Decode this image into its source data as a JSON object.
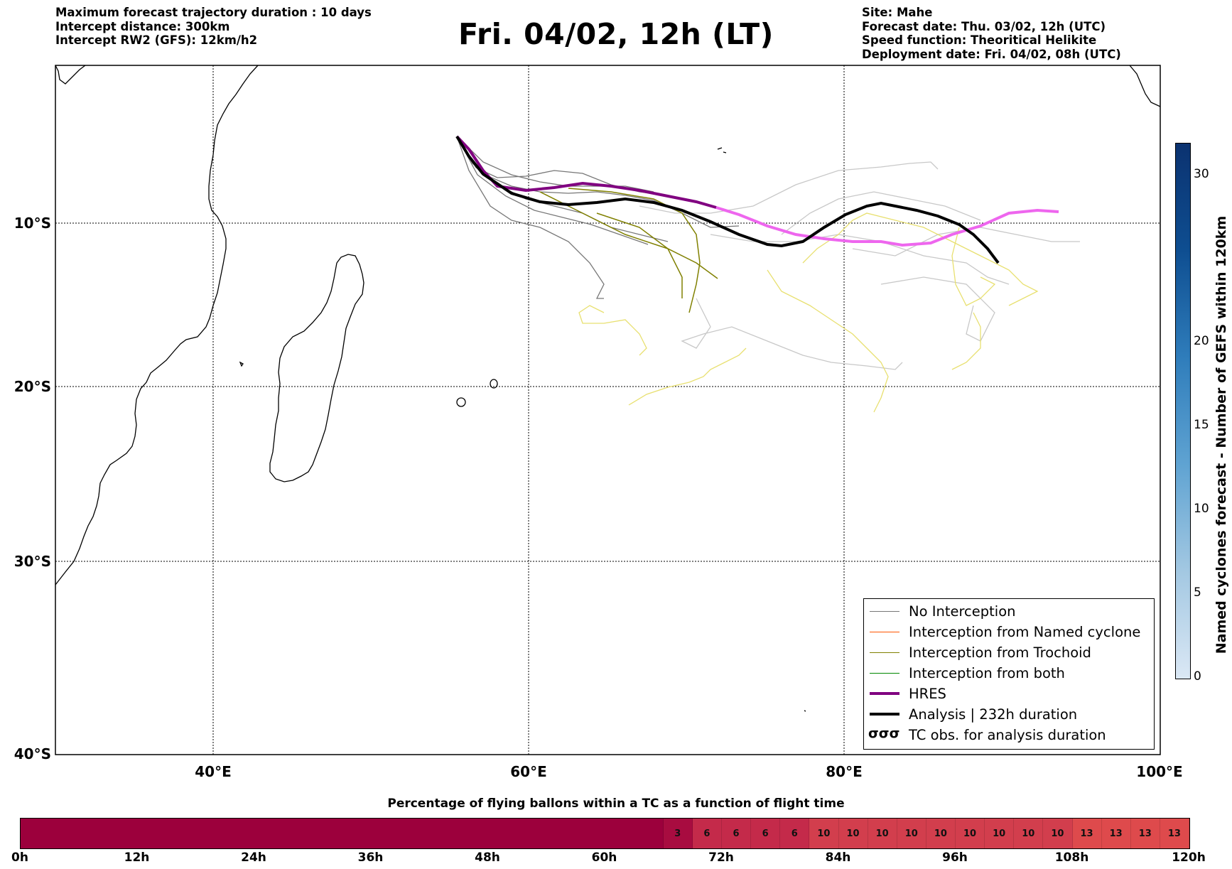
{
  "header_left": [
    "Maximum forecast trajectory duration : 10 days",
    "Intercept distance: 300km",
    "Intercept RW2 (GFS):  12km/h2"
  ],
  "title": "Fri. 04/02, 12h (LT)",
  "header_right": [
    "Site: Mahe",
    "Forecast date: Thu. 03/02, 12h (UTC)",
    "Speed function: Theoritical Helikite",
    "Deployment date: Fri. 04/02, 08h (UTC)"
  ],
  "map": {
    "lon_range": [
      30,
      100
    ],
    "lat_range": [
      -40,
      0
    ],
    "lat_labels": [
      {
        "lat": -10,
        "label": "10°S"
      },
      {
        "lat": -20,
        "label": "20°S"
      },
      {
        "lat": -30,
        "label": "30°S"
      },
      {
        "lat": -40,
        "label": "40°S"
      }
    ],
    "lon_labels": [
      {
        "lon": 40,
        "label": "40°E"
      },
      {
        "lon": 60,
        "label": "60°E"
      },
      {
        "lon": 80,
        "label": "80°E"
      },
      {
        "lon": 100,
        "label": "100°E"
      }
    ],
    "launch_site": {
      "name": "Mahe",
      "lon": 55.5,
      "lat": -4.6
    }
  },
  "legend": [
    {
      "label": "No Interception",
      "color": "#777777",
      "width": 1.5,
      "type": "line"
    },
    {
      "label": "Interception from Named cyclone",
      "color": "#ff5500",
      "width": 1.5,
      "type": "line"
    },
    {
      "label": "Interception from Trochoid",
      "color": "#808000",
      "width": 1.5,
      "type": "line"
    },
    {
      "label": "Interception from both",
      "color": "#008800",
      "width": 1.5,
      "type": "line"
    },
    {
      "label": "HRES",
      "color": "#800080",
      "width": 4,
      "type": "line"
    },
    {
      "label": "Analysis | 232h duration",
      "color": "#000000",
      "width": 4,
      "type": "line"
    },
    {
      "label": "TC obs. for analysis duration",
      "symbol": "σσσ",
      "type": "symbol"
    }
  ],
  "colorbar": {
    "label": "Named cyclones forecast - Number of GEFS within 120km",
    "ticks": [
      "0",
      "5",
      "10",
      "15",
      "20",
      "30"
    ],
    "colors": [
      "#dbe8f5",
      "#a3c8e2",
      "#5fa3d2",
      "#2f7dbb",
      "#0e4e91",
      "#0b3270"
    ]
  },
  "percentage": {
    "title": "Percentage of flying ballons within a TC as a function of flight time",
    "time_labels": [
      "0h",
      "12h",
      "24h",
      "36h",
      "48h",
      "60h",
      "72h",
      "84h",
      "96h",
      "108h",
      "120h"
    ],
    "cells": [
      {
        "value": "",
        "count": 22,
        "color": "#9c003c"
      },
      {
        "value": "3",
        "color": "#a80c40"
      },
      {
        "value": "6",
        "color": "#c42a4a"
      },
      {
        "value": "6",
        "color": "#c42a4a"
      },
      {
        "value": "6",
        "color": "#c42a4a"
      },
      {
        "value": "6",
        "color": "#c42a4a"
      },
      {
        "value": "10",
        "color": "#d23e4d"
      },
      {
        "value": "10",
        "color": "#d23e4d"
      },
      {
        "value": "10",
        "color": "#d23e4d"
      },
      {
        "value": "10",
        "color": "#d23e4d"
      },
      {
        "value": "10",
        "color": "#d23e4d"
      },
      {
        "value": "10",
        "color": "#d23e4d"
      },
      {
        "value": "10",
        "color": "#d23e4d"
      },
      {
        "value": "10",
        "color": "#d23e4d"
      },
      {
        "value": "10",
        "color": "#d23e4d"
      },
      {
        "value": "13",
        "color": "#de4a4c"
      },
      {
        "value": "13",
        "color": "#de4a4c"
      },
      {
        "value": "13",
        "color": "#de4a4c"
      },
      {
        "value": "13",
        "color": "#de4a4c"
      }
    ]
  }
}
